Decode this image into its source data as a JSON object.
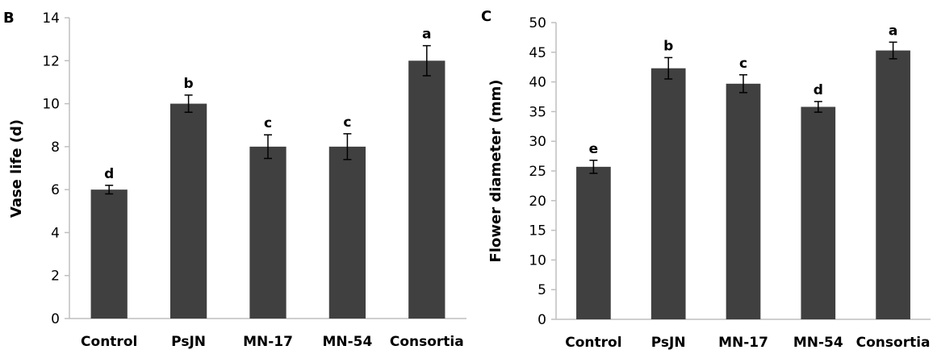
{
  "chart_data": [
    {
      "panel_label": "B",
      "type": "bar",
      "categories": [
        "Control",
        "PsJN",
        "MN-17",
        "MN-54",
        "Consortia"
      ],
      "values": [
        6,
        10,
        8,
        8,
        12
      ],
      "error": [
        0.2,
        0.4,
        0.55,
        0.6,
        0.7
      ],
      "letters": [
        "d",
        "b",
        "c",
        "c",
        "a"
      ],
      "ylabel": "Vase life (d)",
      "xlabel": "",
      "ylim": [
        0,
        14
      ],
      "yticks": [
        0,
        2,
        4,
        6,
        8,
        10,
        12,
        14
      ],
      "bar_color": "#404040",
      "grid": false
    },
    {
      "panel_label": "C",
      "type": "bar",
      "categories": [
        "Control",
        "PsJN",
        "MN-17",
        "MN-54",
        "Consortia"
      ],
      "values": [
        25.7,
        42.3,
        39.7,
        35.8,
        45.3
      ],
      "error": [
        1.1,
        1.8,
        1.5,
        0.9,
        1.4
      ],
      "letters": [
        "e",
        "b",
        "c",
        "d",
        "a"
      ],
      "ylabel": "Flower diameter (mm)",
      "xlabel": "",
      "ylim": [
        0,
        50
      ],
      "yticks": [
        0,
        5,
        10,
        15,
        20,
        25,
        30,
        35,
        40,
        45,
        50
      ],
      "bar_color": "#404040",
      "grid": false
    }
  ]
}
